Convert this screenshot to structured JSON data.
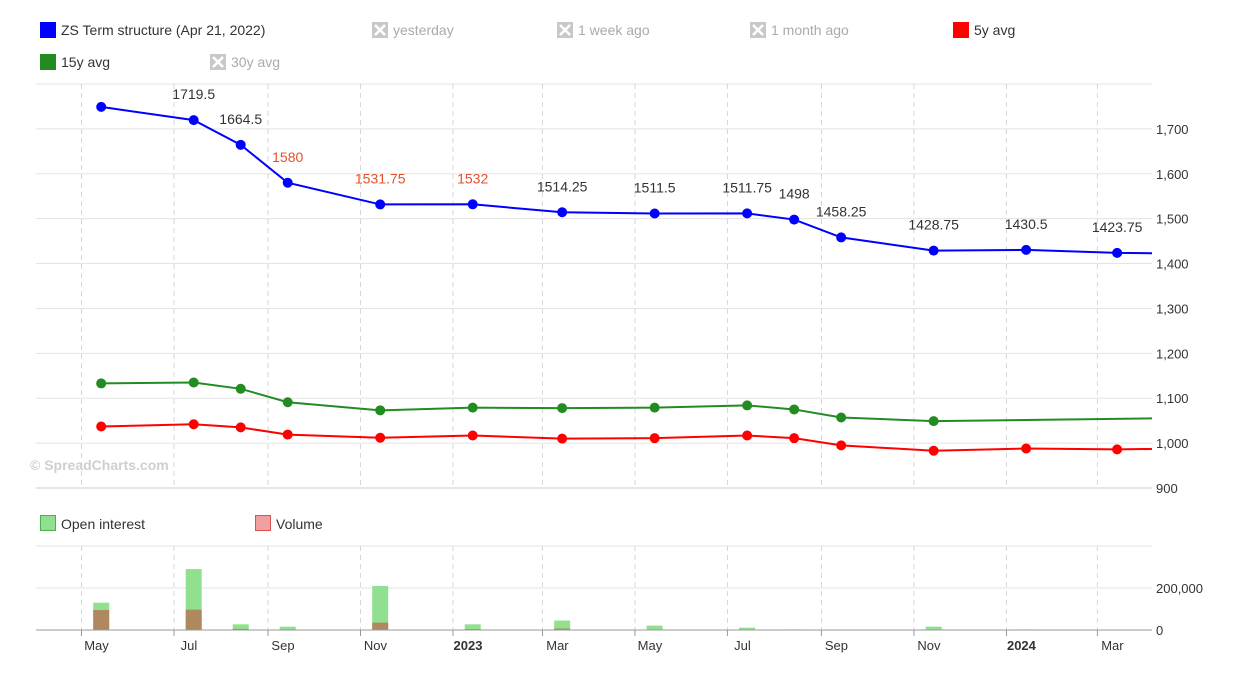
{
  "legend": {
    "items": [
      {
        "label": "ZS Term structure (Apr 21, 2022)",
        "color": "#0000ff",
        "hidden": false
      },
      {
        "label": "yesterday",
        "color": "#bbbbbb",
        "hidden": true
      },
      {
        "label": "1 week ago",
        "color": "#bbbbbb",
        "hidden": true
      },
      {
        "label": "1 month ago",
        "color": "#bbbbbb",
        "hidden": true
      },
      {
        "label": "5y avg",
        "color": "#ff0000",
        "hidden": false
      },
      {
        "label": "15y avg",
        "color": "#228b22",
        "hidden": false
      },
      {
        "label": "30y avg",
        "color": "#bbbbbb",
        "hidden": true
      }
    ]
  },
  "volume_legend": {
    "items": [
      {
        "label": "Open interest",
        "color": "#90e090"
      },
      {
        "label": "Volume",
        "color": "#f0a0a0"
      }
    ]
  },
  "watermark": "© SpreadCharts.com",
  "chart_data": {
    "type": "line",
    "x_ticks": [
      {
        "label": "May",
        "date": "2022-05-01",
        "bold": false
      },
      {
        "label": "Jul",
        "date": "2022-07-01",
        "bold": false
      },
      {
        "label": "Sep",
        "date": "2022-09-01",
        "bold": false
      },
      {
        "label": "Nov",
        "date": "2022-11-01",
        "bold": false
      },
      {
        "label": "2023",
        "date": "2023-01-01",
        "bold": true
      },
      {
        "label": "Mar",
        "date": "2023-03-01",
        "bold": false
      },
      {
        "label": "May",
        "date": "2023-05-01",
        "bold": false
      },
      {
        "label": "Jul",
        "date": "2023-07-01",
        "bold": false
      },
      {
        "label": "Sep",
        "date": "2023-09-01",
        "bold": false
      },
      {
        "label": "Nov",
        "date": "2023-11-01",
        "bold": false
      },
      {
        "label": "2024",
        "date": "2024-01-01",
        "bold": true
      },
      {
        "label": "Mar",
        "date": "2024-03-01",
        "bold": false
      }
    ],
    "x_range": [
      "2022-04-01",
      "2024-04-06"
    ],
    "y_ticks": [
      {
        "label": "900",
        "value": 900
      },
      {
        "label": "1,000",
        "value": 1000
      },
      {
        "label": "1,100",
        "value": 1100
      },
      {
        "label": "1,200",
        "value": 1200
      },
      {
        "label": "1,300",
        "value": 1300
      },
      {
        "label": "1,400",
        "value": 1400
      },
      {
        "label": "1,500",
        "value": 1500
      },
      {
        "label": "1,600",
        "value": 1600
      },
      {
        "label": "1,700",
        "value": 1700
      }
    ],
    "ylim": [
      900,
      1800
    ],
    "grid": true,
    "series": [
      {
        "name": "ZS Term structure (Apr 21, 2022)",
        "color": "#0000ff",
        "points": [
          {
            "x": "2022-05-14",
            "y": 1749
          },
          {
            "x": "2022-07-14",
            "y": 1719.5,
            "label": "1719.5"
          },
          {
            "x": "2022-08-14",
            "y": 1664.5,
            "label": "1664.5"
          },
          {
            "x": "2022-09-14",
            "y": 1580,
            "label": "1580",
            "highlight": true
          },
          {
            "x": "2022-11-14",
            "y": 1531.75,
            "label": "1531.75",
            "highlight": true
          },
          {
            "x": "2023-01-14",
            "y": 1532,
            "label": "1532",
            "highlight": true
          },
          {
            "x": "2023-03-14",
            "y": 1514.25,
            "label": "1514.25"
          },
          {
            "x": "2023-05-14",
            "y": 1511.5,
            "label": "1511.5"
          },
          {
            "x": "2023-07-14",
            "y": 1511.75,
            "label": "1511.75"
          },
          {
            "x": "2023-08-14",
            "y": 1498,
            "label": "1498"
          },
          {
            "x": "2023-09-14",
            "y": 1458.25,
            "label": "1458.25"
          },
          {
            "x": "2023-11-14",
            "y": 1428.75,
            "label": "1428.75"
          },
          {
            "x": "2024-01-14",
            "y": 1430.5,
            "label": "1430.5"
          },
          {
            "x": "2024-03-14",
            "y": 1423.75,
            "label": "1423.75"
          }
        ],
        "extend_to": {
          "x": "2024-04-06",
          "y": 1423
        }
      },
      {
        "name": "15y avg",
        "color": "#228b22",
        "points": [
          {
            "x": "2022-05-14",
            "y": 1133
          },
          {
            "x": "2022-07-14",
            "y": 1135
          },
          {
            "x": "2022-08-14",
            "y": 1121
          },
          {
            "x": "2022-09-14",
            "y": 1091
          },
          {
            "x": "2022-11-14",
            "y": 1073
          },
          {
            "x": "2023-01-14",
            "y": 1079
          },
          {
            "x": "2023-03-14",
            "y": 1078
          },
          {
            "x": "2023-05-14",
            "y": 1079
          },
          {
            "x": "2023-07-14",
            "y": 1084
          },
          {
            "x": "2023-08-14",
            "y": 1075
          },
          {
            "x": "2023-09-14",
            "y": 1057
          },
          {
            "x": "2023-11-14",
            "y": 1049
          }
        ],
        "extend_to": {
          "x": "2024-04-06",
          "y": 1055
        }
      },
      {
        "name": "5y avg",
        "color": "#ff0000",
        "points": [
          {
            "x": "2022-05-14",
            "y": 1037
          },
          {
            "x": "2022-07-14",
            "y": 1042
          },
          {
            "x": "2022-08-14",
            "y": 1035
          },
          {
            "x": "2022-09-14",
            "y": 1019
          },
          {
            "x": "2022-11-14",
            "y": 1012
          },
          {
            "x": "2023-01-14",
            "y": 1017
          },
          {
            "x": "2023-03-14",
            "y": 1010
          },
          {
            "x": "2023-05-14",
            "y": 1011
          },
          {
            "x": "2023-07-14",
            "y": 1017
          },
          {
            "x": "2023-08-14",
            "y": 1011
          },
          {
            "x": "2023-09-14",
            "y": 995
          },
          {
            "x": "2023-11-14",
            "y": 983
          },
          {
            "x": "2024-01-14",
            "y": 988
          },
          {
            "x": "2024-03-14",
            "y": 986
          }
        ],
        "extend_to": {
          "x": "2024-04-06",
          "y": 987
        }
      }
    ],
    "volume": {
      "y_ticks": [
        {
          "label": "0",
          "value": 0
        },
        {
          "label": "200,000",
          "value": 200000
        }
      ],
      "ylim": [
        0,
        400000
      ],
      "open_interest_color": "#90e090",
      "volume_color": "#b08860",
      "bars": [
        {
          "x": "2022-05-14",
          "oi": 130000,
          "vol": 95000
        },
        {
          "x": "2022-07-14",
          "oi": 290000,
          "vol": 97000
        },
        {
          "x": "2022-08-14",
          "oi": 27000,
          "vol": 5000
        },
        {
          "x": "2022-09-14",
          "oi": 16000,
          "vol": 3000
        },
        {
          "x": "2022-11-14",
          "oi": 210000,
          "vol": 35000
        },
        {
          "x": "2023-01-14",
          "oi": 27000,
          "vol": 4000
        },
        {
          "x": "2023-03-14",
          "oi": 45000,
          "vol": 7000
        },
        {
          "x": "2023-05-14",
          "oi": 21000,
          "vol": 2000
        },
        {
          "x": "2023-07-14",
          "oi": 11000,
          "vol": 1000
        },
        {
          "x": "2023-08-14",
          "oi": 3000,
          "vol": 1500
        },
        {
          "x": "2023-09-14",
          "oi": 2000,
          "vol": 500
        },
        {
          "x": "2023-11-14",
          "oi": 16000,
          "vol": 1000
        },
        {
          "x": "2024-01-14",
          "oi": 3000,
          "vol": 500
        },
        {
          "x": "2024-03-14",
          "oi": 2000,
          "vol": 500
        }
      ]
    }
  }
}
